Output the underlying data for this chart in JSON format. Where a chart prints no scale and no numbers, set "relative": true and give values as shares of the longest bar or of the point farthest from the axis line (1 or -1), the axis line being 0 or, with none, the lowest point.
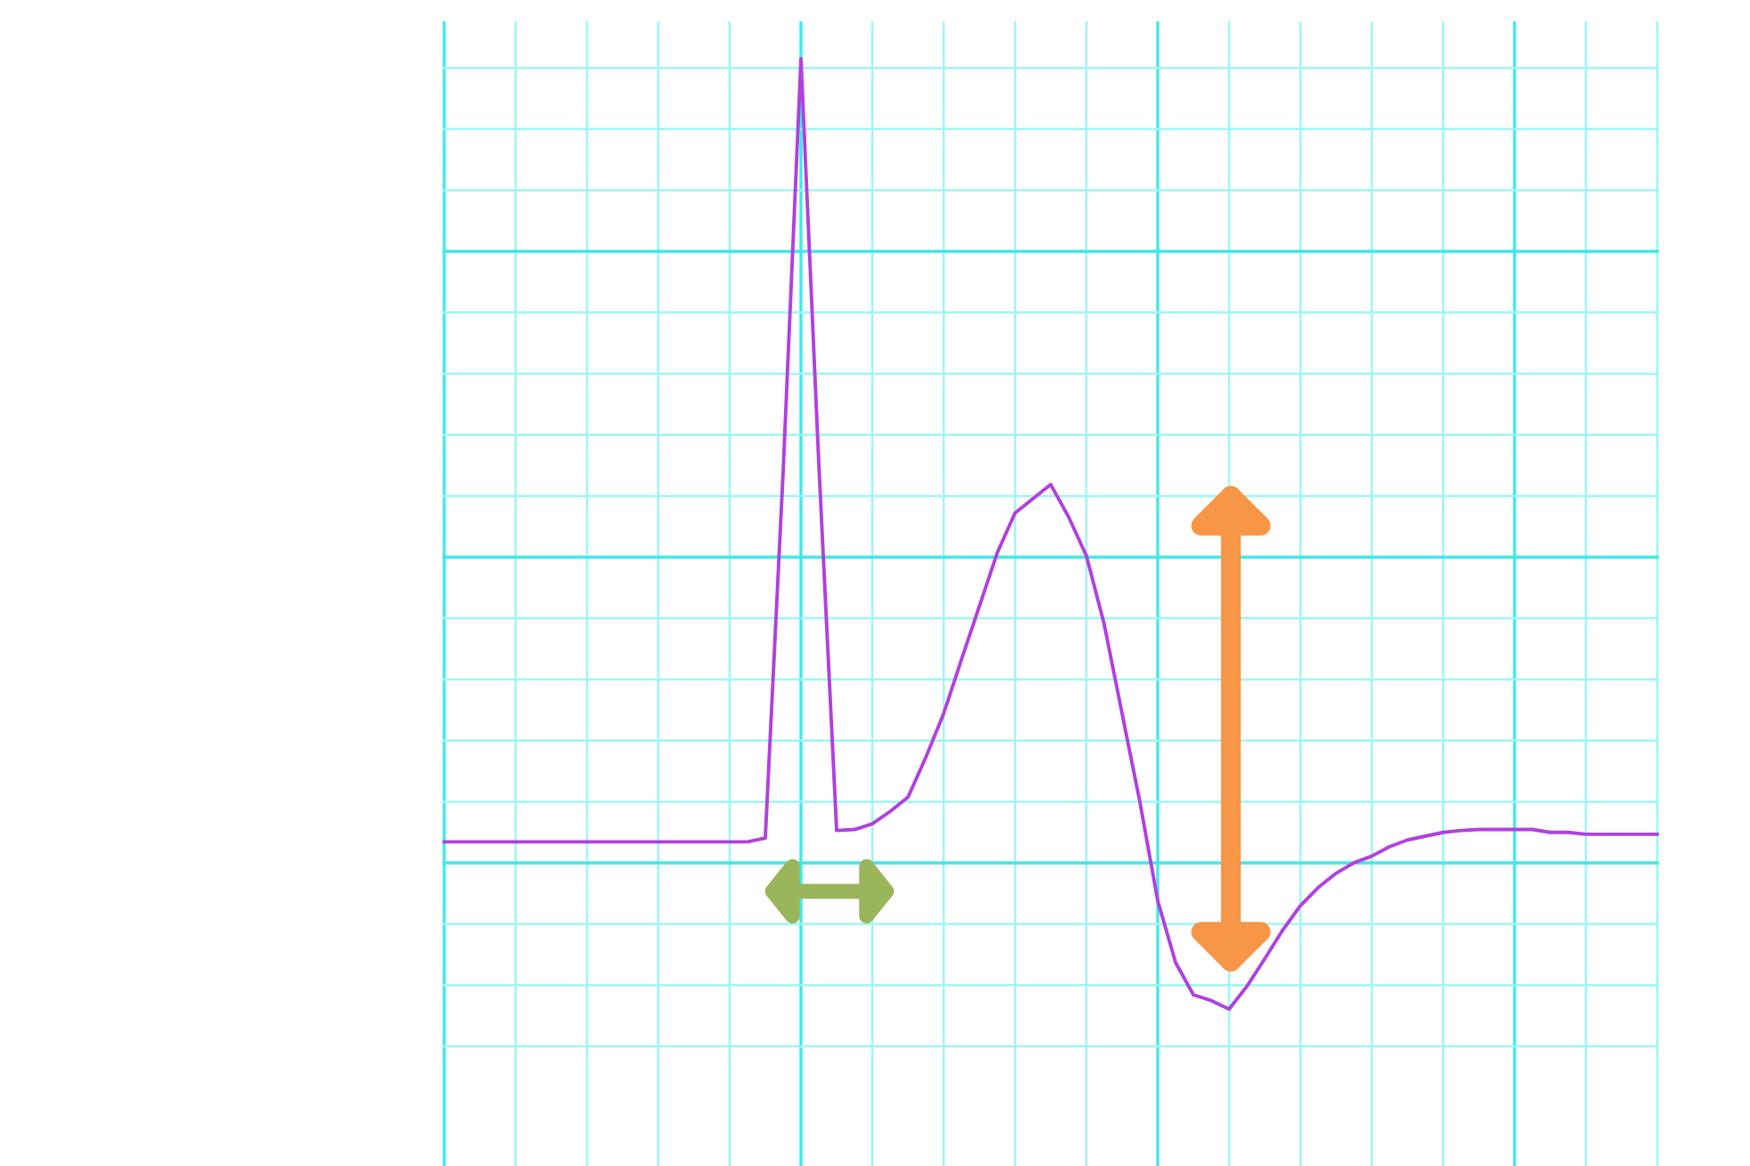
{
  "chart_data": {
    "type": "line",
    "relative": true,
    "grid": true,
    "categories": [
      null,
      null,
      null,
      null,
      null,
      null,
      null,
      null,
      null,
      null,
      null,
      null,
      null,
      null,
      null,
      null,
      null,
      null,
      null,
      null,
      null,
      null,
      null,
      null,
      null,
      null,
      null,
      null,
      null,
      null,
      null,
      null,
      null,
      null,
      null,
      null,
      null,
      null,
      null,
      null,
      null,
      null,
      null,
      null,
      null,
      null,
      null,
      null,
      null,
      null,
      null,
      null,
      null,
      null,
      null,
      null,
      null,
      null,
      null,
      null,
      null,
      null,
      null,
      null,
      null,
      null,
      null,
      null,
      null
    ],
    "series": [
      {
        "color": "#b040e0",
        "values": [
          0.176,
          0.176,
          0.176,
          0.176,
          0.176,
          0.176,
          0.176,
          0.176,
          0.176,
          0.176,
          0.176,
          0.176,
          0.176,
          0.176,
          0.176,
          0.176,
          0.176,
          0.176,
          0.18,
          0.565,
          1,
          0.574,
          0.188,
          0.189,
          0.195,
          0.208,
          0.223,
          0.265,
          0.311,
          0.368,
          0.424,
          0.48,
          0.522,
          0.537,
          0.552,
          0.518,
          0.477,
          0.405,
          0.311,
          0.218,
          0.114,
          0.049,
          0.015,
          0.009,
          0,
          0.024,
          0.053,
          0.083,
          0.109,
          0.128,
          0.143,
          0.154,
          0.161,
          0.171,
          0.178,
          0.182,
          0.186,
          0.188,
          0.189,
          0.189,
          0.189,
          0.189,
          0.186,
          0.186,
          0.184,
          0.184,
          0.184,
          0.184,
          0.184
        ]
      }
    ]
  }
}
